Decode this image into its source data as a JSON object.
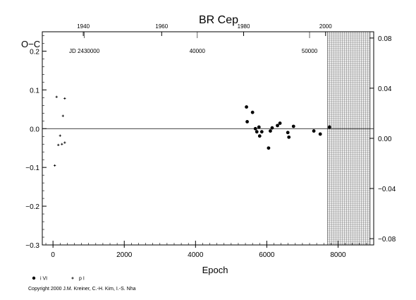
{
  "chart_data": {
    "type": "scatter",
    "title": "BR Cep",
    "ylabel_left": "O−C",
    "xlabel": "Epoch",
    "xlim": [
      -300,
      9000
    ],
    "ylim_left": [
      -0.3,
      0.25
    ],
    "ylim_right": [
      -0.085,
      0.085
    ],
    "x_ticks": [
      "0",
      "2000",
      "4000",
      "6000",
      "8000"
    ],
    "x_tick_values": [
      0,
      2000,
      4000,
      6000,
      8000
    ],
    "y_ticks_left": [
      "0.2",
      "0.1",
      "0.0",
      "−0.1",
      "−0.2",
      "−0.3"
    ],
    "y_tick_values_left": [
      0.2,
      0.1,
      0.0,
      -0.1,
      -0.2,
      -0.3
    ],
    "y_ticks_right": [
      "0.08",
      "0.04",
      "0.00",
      "−0.04",
      "−0.08"
    ],
    "y_tick_values_right": [
      0.08,
      0.04,
      0.0,
      -0.04,
      -0.08
    ],
    "top_year_ticks": [
      "1940",
      "1960",
      "1980",
      "2000"
    ],
    "top_year_epochs": [
      850,
      3050,
      5350,
      7650
    ],
    "jd_ticks": [
      "JD 2430000",
      "40000",
      "50000"
    ],
    "jd_tick_epochs": [
      880,
      4050,
      7200
    ],
    "zero_line": 0.0,
    "grid_region": {
      "x_start": 7700,
      "x_end": 8900,
      "y_from_right": [
        -0.085,
        0.085
      ]
    },
    "series": [
      {
        "name": "i VI",
        "marker": "filled-circle",
        "points": [
          [
            5430,
            0.056
          ],
          [
            5450,
            0.018
          ],
          [
            5600,
            0.042
          ],
          [
            5680,
            0.0
          ],
          [
            5720,
            -0.008
          ],
          [
            5780,
            0.004
          ],
          [
            5800,
            -0.019
          ],
          [
            5860,
            -0.008
          ],
          [
            6050,
            -0.05
          ],
          [
            6100,
            -0.006
          ],
          [
            6150,
            0.002
          ],
          [
            6300,
            0.008
          ],
          [
            6370,
            0.014
          ],
          [
            6590,
            -0.01
          ],
          [
            6620,
            -0.022
          ],
          [
            6750,
            0.006
          ],
          [
            7320,
            -0.006
          ],
          [
            7500,
            -0.014
          ],
          [
            7760,
            0.004
          ]
        ]
      },
      {
        "name": "p I",
        "marker": "plus",
        "points": [
          [
            50,
            -0.095
          ],
          [
            100,
            0.082
          ],
          [
            150,
            -0.042
          ],
          [
            200,
            -0.018
          ],
          [
            250,
            -0.04
          ],
          [
            280,
            0.033
          ],
          [
            330,
            0.078
          ],
          [
            330,
            -0.036
          ]
        ]
      }
    ]
  },
  "copyright": "Copyright 2000 J.M. Kreiner, C.-H. Kim, I.-S. Nha"
}
